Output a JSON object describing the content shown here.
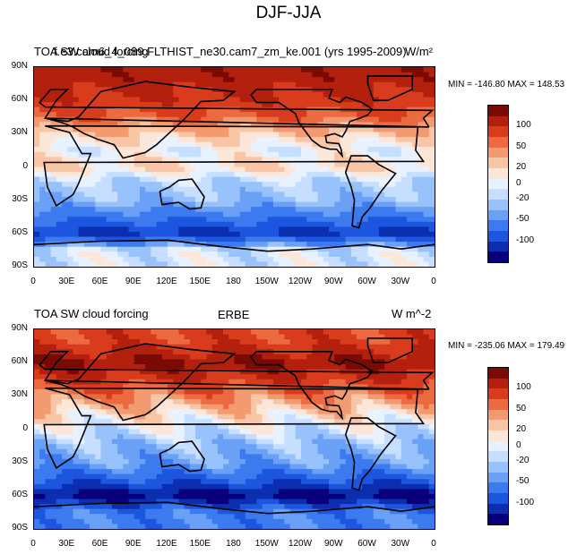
{
  "page_title": "DJF-JJA",
  "colors": {
    "level_palette": [
      "#08007a",
      "#0b2fb0",
      "#1c56de",
      "#3c7af0",
      "#6aa0f6",
      "#98c2fb",
      "#c6deff",
      "#e8f1ff",
      "#fbe6d8",
      "#f8c5a6",
      "#f49a70",
      "#ec6a40",
      "#d93c1c",
      "#b3200d",
      "#7a0a04"
    ],
    "coast": "#000000"
  },
  "panels": [
    {
      "id": "model",
      "title_left": "TOA SW cloud forcing",
      "title_center": "f.e3.cam6_4_089.FLTHIST_ne30.cam7_zm_ke.001 (yrs 1995-2009)",
      "title_right": "W/m²",
      "minmax": "MIN = -146.80 MAX = 148.53"
    },
    {
      "id": "obs",
      "title_left": "TOA SW cloud forcing",
      "title_center": "ERBE",
      "title_right": "W m^-2",
      "minmax": "MIN = -235.06 MAX = 179.49"
    }
  ],
  "axes": {
    "lat_ticks": [
      "90N",
      "60N",
      "30N",
      "0",
      "30S",
      "60S",
      "90S"
    ],
    "lon_ticks": [
      "0",
      "30E",
      "60E",
      "90E",
      "120E",
      "150E",
      "180",
      "150W",
      "120W",
      "90W",
      "60W",
      "30W",
      "0"
    ]
  },
  "colorbar": {
    "labels": [
      "100",
      "50",
      "20",
      "0",
      "-20",
      "-50",
      "-100"
    ]
  },
  "chart_data": [
    {
      "type": "heatmap",
      "title": "TOA SW cloud forcing",
      "subtitle": "f.e3.cam6_4_089.FLTHIST_ne30.cam7_zm_ke.001 (yrs 1995-2009)",
      "units": "W/m²",
      "x_range": [
        0,
        360
      ],
      "y_range": [
        -90,
        90
      ],
      "min": -146.8,
      "max": 148.53,
      "levels": [
        -100,
        -50,
        -20,
        0,
        20,
        50,
        100
      ],
      "lat_bands": [
        {
          "lat": 80,
          "value": 90
        },
        {
          "lat": 60,
          "value": 70
        },
        {
          "lat": 45,
          "value": 45
        },
        {
          "lat": 30,
          "value": 15
        },
        {
          "lat": 15,
          "value": -5
        },
        {
          "lat": 0,
          "value": 10
        },
        {
          "lat": -15,
          "value": -20
        },
        {
          "lat": -30,
          "value": -30
        },
        {
          "lat": -45,
          "value": -65
        },
        {
          "lat": -60,
          "value": -110
        },
        {
          "lat": -75,
          "value": -10
        }
      ]
    },
    {
      "type": "heatmap",
      "title": "TOA SW cloud forcing",
      "subtitle": "ERBE",
      "units": "W m^-2",
      "x_range": [
        0,
        360
      ],
      "y_range": [
        -90,
        90
      ],
      "min": -235.06,
      "max": 179.49,
      "levels": [
        -100,
        -50,
        -20,
        0,
        20,
        50,
        100
      ],
      "lat_bands": [
        {
          "lat": 80,
          "value": 60
        },
        {
          "lat": 60,
          "value": 100
        },
        {
          "lat": 45,
          "value": 70
        },
        {
          "lat": 30,
          "value": 35
        },
        {
          "lat": 15,
          "value": 10
        },
        {
          "lat": 0,
          "value": -10
        },
        {
          "lat": -15,
          "value": -30
        },
        {
          "lat": -30,
          "value": -40
        },
        {
          "lat": -45,
          "value": -80
        },
        {
          "lat": -60,
          "value": -140
        },
        {
          "lat": -75,
          "value": -60
        }
      ]
    }
  ]
}
